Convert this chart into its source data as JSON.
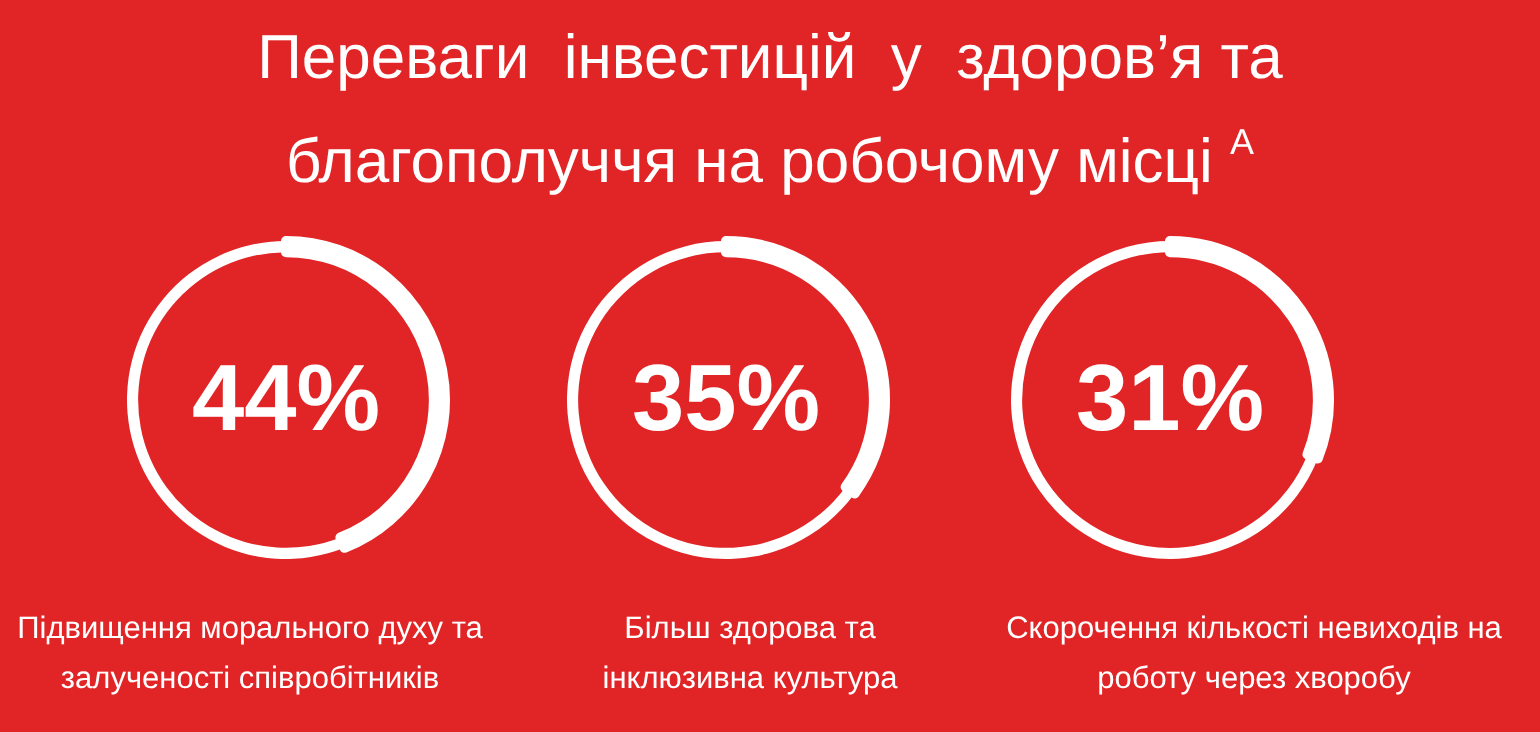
{
  "chart_data": [
    {
      "type": "donut",
      "title": "Переваги  інвестицій  у  здоров’я та благополуччя на робочому місці $^{A}$",
      "categories": [
        null,
        null
      ],
      "values": [
        44,
        56
      ],
      "colors": [
        "#ffffff",
        "#ffffff"
      ],
      "value_labels": [
        "44%",
        null
      ],
      "annotations": [
        "Підвищення морального духу та залученості співробітників"
      ]
    },
    {
      "type": "donut",
      "categories": [
        null,
        null
      ],
      "values": [
        35,
        65
      ],
      "colors": [
        "#ffffff",
        "#ffffff"
      ],
      "value_labels": [
        "35%",
        null
      ],
      "annotations": [
        "Більш здорова та інклюзивна культура"
      ]
    },
    {
      "type": "donut",
      "categories": [
        null,
        null
      ],
      "values": [
        31,
        69
      ],
      "colors": [
        "#ffffff",
        "#ffffff"
      ],
      "value_labels": [
        "31%",
        null
      ],
      "annotations": [
        "Скорочення кількості невиходів на роботу через хворобу"
      ]
    }
  ]
}
